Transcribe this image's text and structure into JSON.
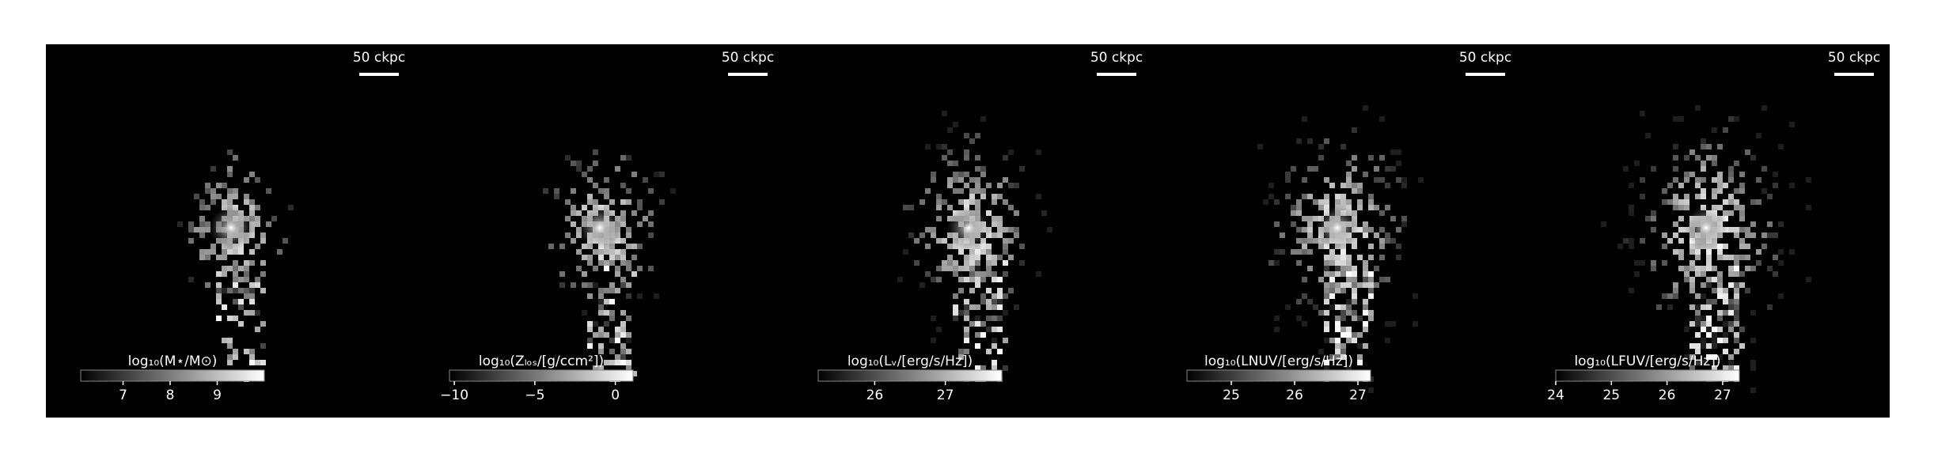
{
  "panels": [
    {
      "scalebar": "50 ckpc",
      "colorbar": {
        "label": "log₁₀(M⋆/M⊙)",
        "lim": [
          6.1,
          10.0
        ],
        "ticks": [
          7,
          8,
          9
        ]
      }
    },
    {
      "scalebar": "50 ckpc",
      "colorbar": {
        "label": "log₁₀(Zₗₒₛ/[g/ccm²])",
        "lim": [
          -10.3,
          1.1
        ],
        "ticks": [
          {
            "value": -10,
            "label": "−10"
          },
          {
            "value": -5,
            "label": "−5"
          },
          0
        ]
      }
    },
    {
      "scalebar": "50 ckpc",
      "colorbar": {
        "label": "log₁₀(Lᵥ/[erg/s/Hz])",
        "lim": [
          25.2,
          27.8
        ],
        "ticks": [
          26,
          27
        ]
      }
    },
    {
      "scalebar": "50 ckpc",
      "colorbar": {
        "label": "log₁₀(LNUV/[erg/s/Hz])",
        "lim": [
          24.3,
          27.2
        ],
        "ticks": [
          25,
          26,
          27
        ]
      }
    },
    {
      "scalebar": "50 ckpc",
      "colorbar": {
        "label": "log₁₀(LFUV/[erg/s/Hz])",
        "lim": [
          24.0,
          27.3
        ],
        "ticks": [
          24,
          25,
          26,
          27
        ]
      }
    }
  ]
}
